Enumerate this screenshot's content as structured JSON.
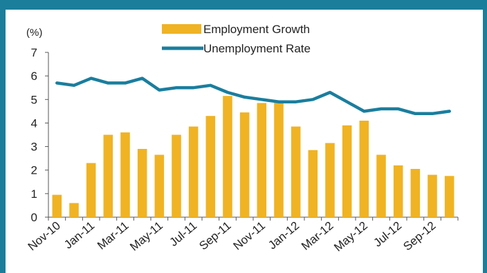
{
  "chart_data": {
    "type": "bar+line",
    "y_unit": "(%)",
    "categories": [
      "Nov-10",
      "Dec-10",
      "Jan-11",
      "Feb-11",
      "Mar-11",
      "Apr-11",
      "May-11",
      "Jun-11",
      "Jul-11",
      "Aug-11",
      "Sep-11",
      "Oct-11",
      "Nov-11",
      "Dec-11",
      "Jan-12",
      "Feb-12",
      "Mar-12",
      "Apr-12",
      "May-12",
      "Jun-12",
      "Jul-12",
      "Aug-12",
      "Sep-12",
      "Oct-12"
    ],
    "tick_labels": [
      "Nov-10",
      "Jan-11",
      "Mar-11",
      "May-11",
      "Jul-11",
      "Sep-11",
      "Nov-11",
      "Jan-12",
      "Mar-12",
      "May-12",
      "Jul-12",
      "Sep-12"
    ],
    "series": [
      {
        "name": "Employment Growth",
        "type": "bar",
        "color": "#f0b323",
        "values": [
          0.95,
          0.6,
          2.3,
          3.5,
          3.6,
          2.9,
          2.65,
          3.5,
          3.85,
          4.3,
          5.15,
          4.45,
          4.85,
          4.9,
          3.85,
          2.85,
          3.15,
          3.9,
          4.1,
          2.65,
          2.2,
          2.05,
          1.8,
          1.75
        ]
      },
      {
        "name": "Unemployment Rate",
        "type": "line",
        "color": "#1a7e9e",
        "values": [
          5.7,
          5.6,
          5.9,
          5.7,
          5.7,
          5.9,
          5.4,
          5.5,
          5.5,
          5.6,
          5.3,
          5.1,
          5.0,
          4.9,
          4.9,
          5.0,
          5.3,
          4.9,
          4.5,
          4.6,
          4.6,
          4.4,
          4.4,
          4.5
        ]
      }
    ],
    "ylim": [
      0,
      7
    ],
    "yticks": [
      0,
      1,
      2,
      3,
      4,
      5,
      6,
      7
    ],
    "grid": false,
    "legend_position": "top-center"
  }
}
